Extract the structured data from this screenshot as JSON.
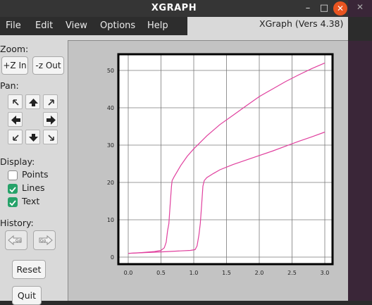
{
  "window": {
    "title": "XGRAPH",
    "minimize_icon": "minimize-icon",
    "maximize_icon": "maximize-icon",
    "close_icon": "close-icon"
  },
  "menu": {
    "file": "File",
    "edit": "Edit",
    "view": "View",
    "options": "Options",
    "help": "Help"
  },
  "version": "XGraph (Vers 4.38)",
  "zoom": {
    "label": "Zoom:",
    "in": "+Z In",
    "out": "-z Out"
  },
  "pan": {
    "label": "Pan:"
  },
  "display": {
    "label": "Display:",
    "points": "Points",
    "lines": "Lines",
    "text": "Text",
    "points_on": false,
    "lines_on": true,
    "text_on": true
  },
  "history": {
    "label": "History:",
    "back_icon": "go-back-icon",
    "forward_icon": "go-forward-icon"
  },
  "reset": "Reset",
  "quit": "Quit",
  "colors": {
    "accent": "#e95420",
    "check": "#26a269",
    "series": "#e0409e"
  },
  "chart_data": {
    "type": "line",
    "xlim": [
      0,
      3
    ],
    "ylim": [
      0,
      52
    ],
    "xticks": [
      0.0,
      0.5,
      1.0,
      1.5,
      2.0,
      2.5,
      3.0
    ],
    "xtick_labels": [
      "0.0",
      "0.5",
      "1.0",
      "1.5",
      "2.0",
      "2.5",
      "3.0"
    ],
    "yticks": [
      0,
      10,
      20,
      30,
      40,
      50
    ],
    "ytick_labels": [
      "0",
      "10",
      "20",
      "30",
      "40",
      "50"
    ],
    "grid": true,
    "series": [
      {
        "color": "#e0409e",
        "points": [
          [
            0,
            1
          ],
          [
            0.2,
            1.2
          ],
          [
            0.4,
            1.5
          ],
          [
            0.5,
            1.8
          ],
          [
            0.55,
            2.5
          ],
          [
            0.58,
            4
          ],
          [
            0.6,
            7
          ],
          [
            0.62,
            9
          ],
          [
            0.64,
            14
          ],
          [
            0.66,
            19
          ],
          [
            0.67,
            20.5
          ],
          [
            0.7,
            21.5
          ],
          [
            0.75,
            23
          ],
          [
            0.8,
            24.5
          ],
          [
            0.9,
            27
          ],
          [
            1.0,
            29
          ],
          [
            1.2,
            32.5
          ],
          [
            1.4,
            35.5
          ],
          [
            1.6,
            38
          ],
          [
            1.8,
            40.5
          ],
          [
            2.0,
            43
          ],
          [
            2.2,
            45
          ],
          [
            2.4,
            47
          ],
          [
            2.6,
            48.8
          ],
          [
            2.8,
            50.5
          ],
          [
            3.0,
            52
          ]
        ]
      },
      {
        "color": "#e0409e",
        "points": [
          [
            0,
            1
          ],
          [
            0.5,
            1.4
          ],
          [
            0.95,
            1.8
          ],
          [
            1.02,
            2
          ],
          [
            1.05,
            3
          ],
          [
            1.08,
            6
          ],
          [
            1.1,
            9
          ],
          [
            1.12,
            14
          ],
          [
            1.14,
            19
          ],
          [
            1.16,
            20.5
          ],
          [
            1.2,
            21.3
          ],
          [
            1.3,
            22.4
          ],
          [
            1.4,
            23.4
          ],
          [
            1.6,
            24.8
          ],
          [
            1.8,
            26
          ],
          [
            2.0,
            27.2
          ],
          [
            2.2,
            28.4
          ],
          [
            2.4,
            29.7
          ],
          [
            2.6,
            31
          ],
          [
            2.8,
            32.2
          ],
          [
            3.0,
            33.5
          ]
        ]
      }
    ]
  }
}
